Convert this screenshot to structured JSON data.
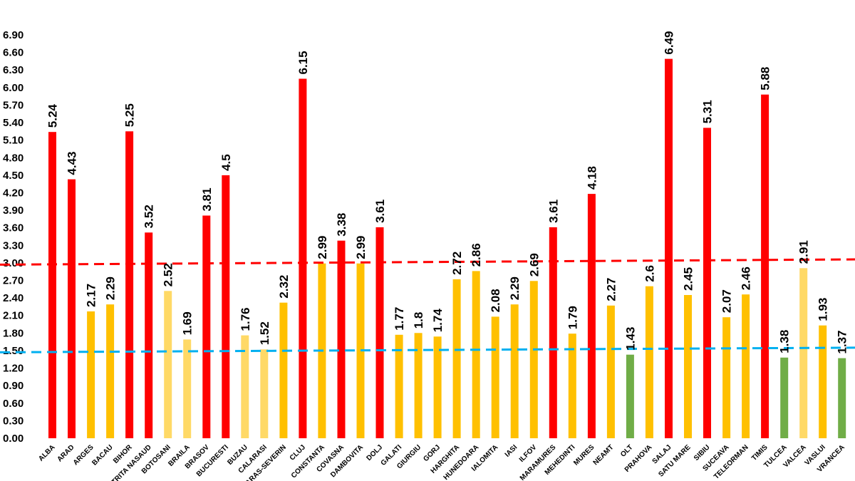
{
  "chart_data": {
    "type": "bar",
    "title": "",
    "xlabel": "",
    "ylabel": "",
    "ylim": [
      0,
      6.9
    ],
    "y_ticks": [
      "0.00",
      "0.30",
      "0.60",
      "0.90",
      "1.20",
      "1.50",
      "1.80",
      "2.10",
      "2.40",
      "2.70",
      "3.00",
      "3.30",
      "3.60",
      "3.90",
      "4.20",
      "4.50",
      "4.80",
      "5.10",
      "5.40",
      "5.70",
      "6.00",
      "6.30",
      "6.60",
      "6.90"
    ],
    "grid": false,
    "legend": "none",
    "colors": {
      "red": "#ff0000",
      "orange": "#ffc000",
      "light_yellow": "#ffd966",
      "green": "#70ad47",
      "upper_threshold_line": "#ff0000",
      "lower_threshold_line": "#00b0f0"
    },
    "categories": [
      "ALBA",
      "ARAD",
      "ARGES",
      "BACAU",
      "BIHOR",
      "BISTRITA NASAUD",
      "BOTOSANI",
      "BRAILA",
      "BRASOV",
      "BUCURESTI",
      "BUZAU",
      "CALARASI",
      "CARAS-SEVERIN",
      "CLUJ",
      "CONSTANTA",
      "COVASNA",
      "DAMBOVITA",
      "DOLJ",
      "GALATI",
      "GIURGIU",
      "GORJ",
      "HARGHITA",
      "HUNEDOARA",
      "IALOMITA",
      "IASI",
      "ILFOV",
      "MARAMURES",
      "MEHEDINTI",
      "MURES",
      "NEAMT",
      "OLT",
      "PRAHOVA",
      "SALAJ",
      "SATU MARE",
      "SIBIU",
      "SUCEAVA",
      "TELEORMAN",
      "TIMIS",
      "TULCEA",
      "VALCEA",
      "VASLUI",
      "VRANCEA"
    ],
    "values": [
      5.24,
      4.43,
      2.17,
      2.29,
      5.25,
      3.52,
      2.52,
      1.69,
      3.81,
      4.5,
      1.76,
      1.52,
      2.32,
      6.15,
      2.99,
      3.38,
      2.99,
      3.61,
      1.77,
      1.8,
      1.74,
      2.72,
      2.86,
      2.08,
      2.29,
      2.69,
      3.61,
      1.79,
      4.18,
      2.27,
      1.43,
      2.6,
      6.49,
      2.45,
      5.31,
      2.07,
      2.46,
      5.88,
      1.38,
      2.91,
      1.93,
      1.37
    ],
    "data_labels": [
      "5.24",
      "4.43",
      "2.17",
      "2.29",
      "5.25",
      "3.52",
      "2.52",
      "1.69",
      "3.81",
      "4.5",
      "1.76",
      "1.52",
      "2.32",
      "6.15",
      "2.99",
      "3.38",
      "2.99",
      "3.61",
      "1.77",
      "1.8",
      "1.74",
      "2.72",
      "2.86",
      "2.08",
      "2.29",
      "2.69",
      "3.61",
      "1.79",
      "4.18",
      "2.27",
      "1.43",
      "2.6",
      "6.49",
      "2.45",
      "5.31",
      "2.07",
      "2.46",
      "5.88",
      "1.38",
      "2.91",
      "1.93",
      "1.37"
    ],
    "bar_colors": [
      "red",
      "red",
      "orange",
      "orange",
      "red",
      "red",
      "light_yellow",
      "light_yellow",
      "red",
      "red",
      "light_yellow",
      "light_yellow",
      "orange",
      "red",
      "orange",
      "red",
      "orange",
      "red",
      "orange",
      "orange",
      "orange",
      "orange",
      "orange",
      "orange",
      "orange",
      "orange",
      "red",
      "orange",
      "red",
      "orange",
      "green",
      "orange",
      "red",
      "orange",
      "red",
      "orange",
      "orange",
      "red",
      "green",
      "light_yellow",
      "orange",
      "green"
    ],
    "reference_lines": [
      {
        "name": "upper threshold",
        "color": "red",
        "style": "dashed",
        "y_start": 2.97,
        "y_end": 3.06
      },
      {
        "name": "lower threshold",
        "color": "blue",
        "style": "dashed",
        "y_start": 1.47,
        "y_end": 1.55
      }
    ]
  }
}
